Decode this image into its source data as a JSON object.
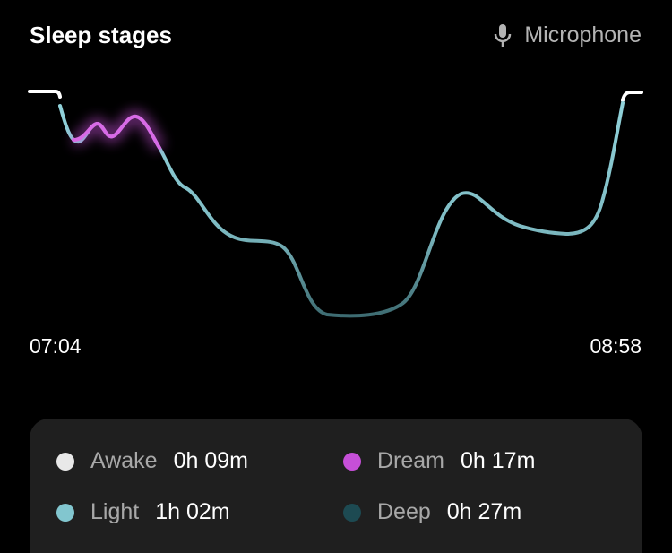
{
  "header": {
    "title": "Sleep stages",
    "source": "Microphone"
  },
  "timeline": {
    "start": "07:04",
    "end": "08:58"
  },
  "legend": [
    {
      "stage": "Awake",
      "duration": "0h 09m",
      "color": "#e8e8e8"
    },
    {
      "stage": "Dream",
      "duration": "0h 17m",
      "color": "#c64fd8"
    },
    {
      "stage": "Light",
      "duration": "1h 02m",
      "color": "#82c6cf"
    },
    {
      "stage": "Deep",
      "duration": "0h 27m",
      "color": "#1d4a52"
    }
  ]
}
